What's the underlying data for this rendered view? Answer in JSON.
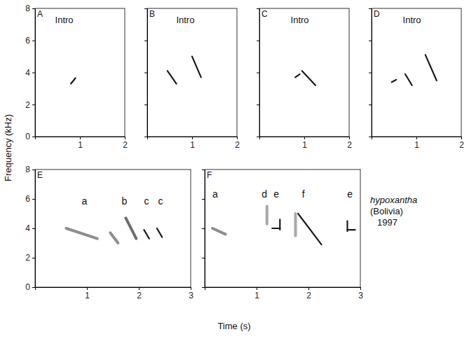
{
  "chart_data": [
    {
      "type": "spectrogram",
      "panel": "A",
      "xlim": [
        0,
        2
      ],
      "xticks": [
        1,
        2
      ],
      "ylim": [
        0,
        8
      ],
      "yticks": [
        0,
        2,
        4,
        6,
        8
      ],
      "color": "#1a1a1a",
      "annotations": [
        {
          "text": "Intro",
          "x": 0.65,
          "y": 7.1
        }
      ],
      "series": [
        {
          "x": [
            0.8,
            0.9
          ],
          "values": [
            3.3,
            3.65
          ]
        }
      ]
    },
    {
      "type": "spectrogram",
      "panel": "B",
      "xlim": [
        0,
        2
      ],
      "xticks": [
        1,
        2
      ],
      "ylim": [
        0,
        8
      ],
      "yticks": [
        0,
        2,
        4,
        6,
        8
      ],
      "tick_labels": "x",
      "color": "#1a1a1a",
      "annotations": [
        {
          "text": "Intro",
          "x": 0.85,
          "y": 7.1
        }
      ],
      "series": [
        {
          "x": [
            0.45,
            0.65
          ],
          "values": [
            4.1,
            3.3
          ]
        },
        {
          "x": [
            1.0,
            1.2
          ],
          "values": [
            5.0,
            3.7
          ]
        }
      ]
    },
    {
      "type": "spectrogram",
      "panel": "C",
      "xlim": [
        0,
        2
      ],
      "xticks": [
        1,
        2
      ],
      "ylim": [
        0,
        8
      ],
      "yticks": [
        0,
        2,
        4,
        6,
        8
      ],
      "tick_labels": "x",
      "color": "#1a1a1a",
      "annotations": [
        {
          "text": "Intro",
          "x": 0.9,
          "y": 7.1
        }
      ],
      "series": [
        {
          "x": [
            0.8,
            0.9
          ],
          "values": [
            3.7,
            3.9
          ]
        },
        {
          "x": [
            0.95,
            1.25
          ],
          "values": [
            4.1,
            3.2
          ]
        }
      ]
    },
    {
      "type": "spectrogram",
      "panel": "D",
      "xlim": [
        0,
        2
      ],
      "xticks": [
        1,
        2
      ],
      "ylim": [
        0,
        8
      ],
      "yticks": [
        0,
        2,
        4,
        6,
        8
      ],
      "tick_labels": "x",
      "color": "#1a1a1a",
      "annotations": [
        {
          "text": "Intro",
          "x": 0.9,
          "y": 7.1
        }
      ],
      "series": [
        {
          "x": [
            0.45,
            0.55
          ],
          "values": [
            3.4,
            3.55
          ]
        },
        {
          "x": [
            0.75,
            0.9
          ],
          "values": [
            3.9,
            3.2
          ]
        },
        {
          "x": [
            1.2,
            1.45
          ],
          "values": [
            5.1,
            3.5
          ]
        }
      ]
    },
    {
      "type": "spectrogram",
      "panel": "E",
      "xlim": [
        0,
        3
      ],
      "xticks": [
        1,
        2,
        3
      ],
      "ylim": [
        0,
        8
      ],
      "yticks": [
        0,
        2,
        4,
        6,
        8
      ],
      "color": "#1a1a1a",
      "annotations": [
        {
          "text": "a",
          "x": 0.95,
          "y": 5.6
        },
        {
          "text": "b",
          "x": 1.72,
          "y": 5.6
        },
        {
          "text": "c",
          "x": 2.15,
          "y": 5.6
        },
        {
          "text": "c",
          "x": 2.42,
          "y": 5.6
        }
      ],
      "series": [
        {
          "x": [
            0.6,
            1.2
          ],
          "values": [
            4.0,
            3.3
          ],
          "color": "#7a7a7a"
        },
        {
          "x": [
            1.45,
            1.6
          ],
          "values": [
            3.7,
            3.0
          ],
          "color": "#7a7a7a"
        },
        {
          "x": [
            1.75,
            1.95
          ],
          "values": [
            4.7,
            3.3
          ],
          "color": "#555555"
        },
        {
          "x": [
            2.1,
            2.2
          ],
          "values": [
            3.9,
            3.3
          ]
        },
        {
          "x": [
            2.35,
            2.45
          ],
          "values": [
            4.0,
            3.4
          ]
        }
      ]
    },
    {
      "type": "spectrogram",
      "panel": "F",
      "xlim": [
        0,
        3
      ],
      "xticks": [
        1,
        2,
        3
      ],
      "ylim": [
        0,
        8
      ],
      "yticks": [
        0,
        2,
        4,
        6,
        8
      ],
      "tick_labels": "x",
      "color": "#1a1a1a",
      "annotations": [
        {
          "text": "a",
          "x": 0.2,
          "y": 6.1
        },
        {
          "text": "d",
          "x": 1.15,
          "y": 6.1
        },
        {
          "text": "e",
          "x": 1.38,
          "y": 6.1
        },
        {
          "text": "f",
          "x": 1.9,
          "y": 6.1
        },
        {
          "text": "e",
          "x": 2.8,
          "y": 6.1
        }
      ],
      "series": [
        {
          "x": [
            0.15,
            0.4
          ],
          "values": [
            4.0,
            3.6
          ],
          "color": "#7a7a7a"
        },
        {
          "x": [
            1.2,
            1.2
          ],
          "values": [
            5.5,
            4.3
          ],
          "color": "#999999"
        },
        {
          "x": [
            1.3,
            1.45
          ],
          "values": [
            4.0,
            4.0
          ]
        },
        {
          "x": [
            1.45,
            1.45
          ],
          "values": [
            4.6,
            3.9
          ]
        },
        {
          "x": [
            1.75,
            1.75
          ],
          "values": [
            5.0,
            3.5
          ],
          "color": "#999999"
        },
        {
          "x": [
            1.8,
            2.25
          ],
          "values": [
            5.0,
            2.9
          ]
        },
        {
          "x": [
            2.75,
            2.9
          ],
          "values": [
            3.9,
            3.9
          ]
        },
        {
          "x": [
            2.75,
            2.75
          ],
          "values": [
            4.5,
            3.8
          ]
        }
      ]
    }
  ],
  "figure": {
    "ylabel": "Frequency (kHz)",
    "xlabel": "Time (s)",
    "caption": [
      "hypoxantha",
      "(Bolivia)",
      "1997"
    ]
  }
}
